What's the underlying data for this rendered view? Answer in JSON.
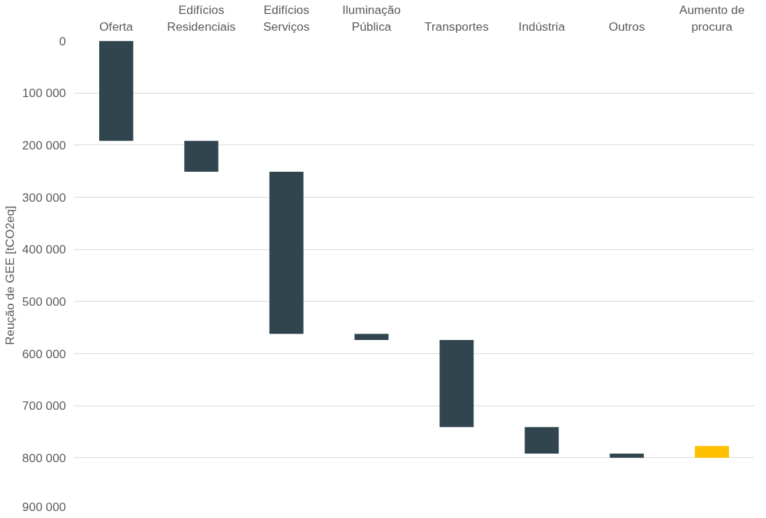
{
  "chart_data": {
    "type": "bar",
    "ylabel": "Reução de GEE [tCO2eq]",
    "categories": [
      "Oferta",
      "Edifícios\nResidenciais",
      "Edifícios\nServiços",
      "Iluminação\nPública",
      "Transportes",
      "Indústria",
      "Outros",
      "Aumento de\nprocura"
    ],
    "base": [
      0,
      192000,
      251000,
      562000,
      574000,
      741000,
      792000,
      800000
    ],
    "values": [
      192000,
      59000,
      311000,
      12000,
      167000,
      51000,
      8000,
      -23000
    ],
    "colors": [
      "#31454f",
      "#31454f",
      "#31454f",
      "#31454f",
      "#31454f",
      "#31454f",
      "#31454f",
      "#ffc000"
    ],
    "ylim": [
      900000,
      0
    ],
    "yticks": [
      {
        "value": 0,
        "label": "0"
      },
      {
        "value": 100000,
        "label": "100 000"
      },
      {
        "value": 200000,
        "label": "200 000"
      },
      {
        "value": 300000,
        "label": "300 000"
      },
      {
        "value": 400000,
        "label": "400 000"
      },
      {
        "value": 500000,
        "label": "500 000"
      },
      {
        "value": 600000,
        "label": "600 000"
      },
      {
        "value": 700000,
        "label": "700 000"
      },
      {
        "value": 800000,
        "label": "800 000"
      },
      {
        "value": 900000,
        "label": "900 000"
      }
    ],
    "grid": "y"
  }
}
